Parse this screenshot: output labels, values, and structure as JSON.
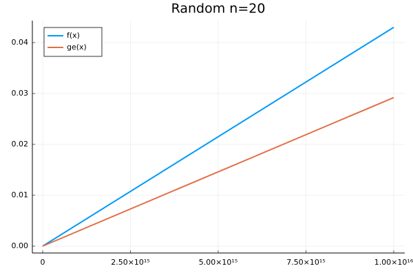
{
  "chart_data": {
    "type": "line",
    "title": "Random n=20",
    "x": [
      0,
      10000000000000000
    ],
    "series": [
      {
        "name": "f(x)",
        "color": "#009af9",
        "values": [
          0,
          0.043
        ]
      },
      {
        "name": "ge(x)",
        "color": "#e26f46",
        "values": [
          0,
          0.0292
        ]
      }
    ],
    "xlim": [
      -294000000000000,
      10314000000000000
    ],
    "xticks": [
      0,
      {
        "value": 2500000000000000,
        "label": "2.50×10¹⁵"
      },
      {
        "value": 5000000000000000,
        "label": "5.00×10¹⁵"
      },
      {
        "value": 7500000000000000,
        "label": "7.50×10¹⁵"
      },
      {
        "value": 10000000000000000,
        "label": "1.00×10¹⁶"
      }
    ],
    "ylim": [
      -0.00135,
      0.04432
    ],
    "yticks": [
      {
        "value": 0,
        "label": "0.00"
      },
      {
        "value": 0.01,
        "label": "0.01"
      },
      {
        "value": 0.02,
        "label": "0.02"
      },
      {
        "value": 0.03,
        "label": "0.03"
      },
      {
        "value": 0.04,
        "label": "0.04"
      }
    ],
    "grid": true,
    "legend": "top-left"
  }
}
